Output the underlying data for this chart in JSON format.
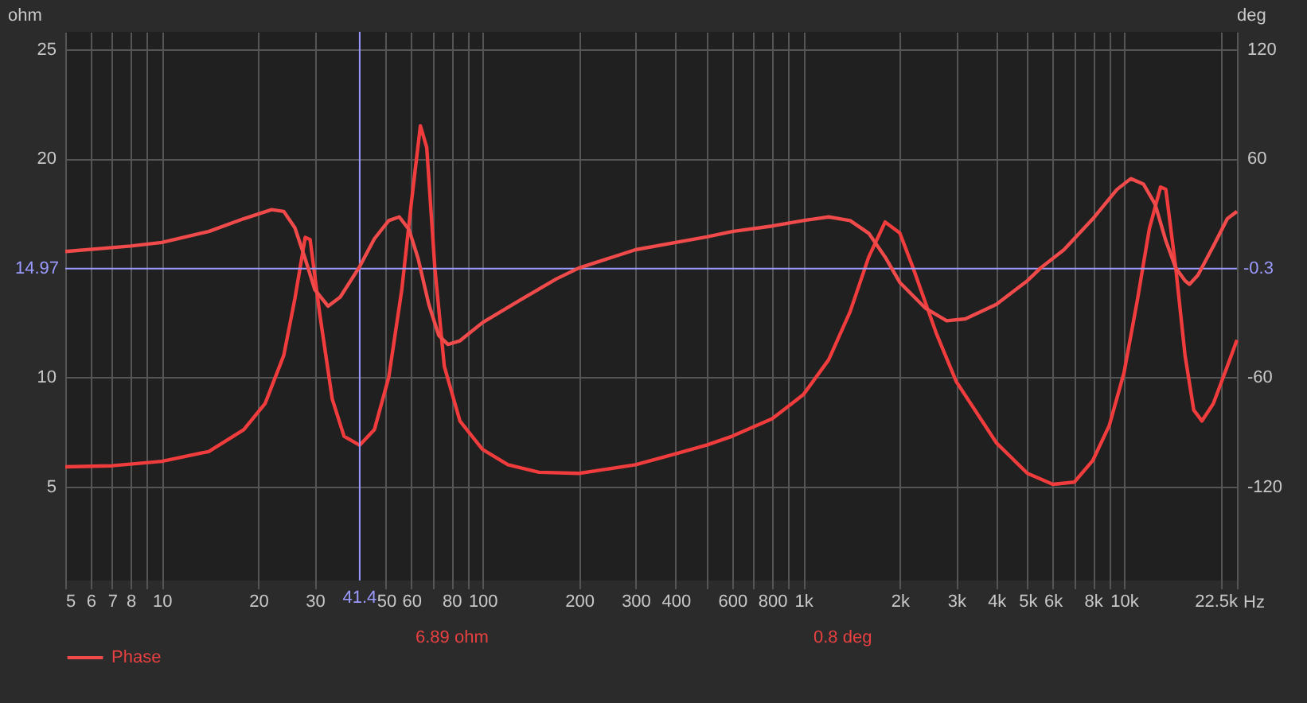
{
  "chart_data": {
    "type": "line",
    "xlabel": "Hz",
    "ylabel": "ohm",
    "y2label": "deg",
    "log": "x",
    "grid": true,
    "legend": "bottom",
    "marker": "none",
    "line_style": "solid",
    "xlim": [
      5,
      22500
    ],
    "ylim": [
      0.7,
      25.8
    ],
    "y2lim": [
      -171.6,
      129.6
    ],
    "xticks": [
      5,
      6,
      7,
      8,
      {
        "value": 9,
        "label": null
      },
      10,
      20,
      30,
      50,
      60,
      {
        "value": 70,
        "label": null
      },
      80,
      {
        "value": 90,
        "label": null
      },
      100,
      200,
      300,
      400,
      {
        "value": 500,
        "label": null
      },
      600,
      {
        "value": 700,
        "label": null
      },
      800,
      {
        "value": 900,
        "label": null
      },
      {
        "value": 1000,
        "label": "1k"
      },
      {
        "value": 2000,
        "label": "2k"
      },
      {
        "value": 3000,
        "label": "3k"
      },
      {
        "value": 4000,
        "label": "4k"
      },
      {
        "value": 5000,
        "label": "5k"
      },
      {
        "value": 6000,
        "label": "6k"
      },
      {
        "value": 7000,
        "label": null
      },
      {
        "value": 8000,
        "label": "8k"
      },
      {
        "value": 9000,
        "label": null
      },
      {
        "value": 10000,
        "label": "10k"
      },
      {
        "value": 20000,
        "label": null
      },
      {
        "value": 22500,
        "label": "22.5k"
      }
    ],
    "yticks": [
      5,
      10,
      20,
      25
    ],
    "y2ticks": [
      -120,
      -60,
      60,
      120
    ],
    "series": [
      {
        "color": "#f03c3c",
        "x": [
          5,
          7,
          10,
          14,
          18,
          21,
          24,
          26,
          28,
          29,
          31,
          34,
          37,
          41.4,
          46,
          51,
          56,
          60,
          64,
          67,
          71,
          76,
          85,
          100,
          120,
          150,
          200,
          300,
          400,
          500,
          600,
          800,
          1000,
          1200,
          1400,
          1600,
          1800,
          2000,
          2200,
          2600,
          3000,
          4000,
          5000,
          6000,
          7000,
          8000,
          9000,
          10000,
          11000,
          12000,
          13000,
          13500,
          14500,
          15500,
          16500,
          17500,
          19000,
          21000,
          22500
        ],
        "values": [
          5.9,
          5.95,
          6.15,
          6.6,
          7.6,
          8.8,
          11,
          13.6,
          16.4,
          16.3,
          13,
          9,
          7.3,
          6.89,
          7.6,
          10,
          14,
          18,
          21.5,
          20.5,
          15,
          10.5,
          8,
          6.7,
          6.0,
          5.65,
          5.6,
          6.0,
          6.5,
          6.9,
          7.3,
          8.1,
          9.2,
          10.8,
          13,
          15.5,
          17.1,
          16.6,
          15,
          12,
          9.8,
          7.0,
          5.6,
          5.1,
          5.2,
          6.2,
          7.8,
          10.2,
          13.5,
          16.8,
          18.7,
          18.6,
          15,
          11,
          8.5,
          8.0,
          8.8,
          10.5,
          11.7
        ]
      },
      {
        "name": "Phase",
        "axis": "y2",
        "color": "#f04a4a",
        "x": [
          5,
          8,
          10,
          14,
          18,
          22,
          24,
          26,
          28,
          30,
          33,
          36,
          41.4,
          46,
          51,
          55,
          59,
          63,
          68,
          73,
          78,
          85,
          100,
          130,
          170,
          200,
          300,
          400,
          500,
          600,
          800,
          1000,
          1200,
          1400,
          1600,
          1800,
          2000,
          2400,
          2800,
          3200,
          4000,
          5000,
          5500,
          6500,
          8000,
          9500,
          10500,
          11500,
          12500,
          13500,
          14500,
          15500,
          16000,
          17000,
          19000,
          21000,
          22500
        ],
        "values": [
          9,
          12,
          14,
          20,
          27,
          32,
          31,
          22,
          5,
          -12,
          -21,
          -16,
          0.8,
          16,
          26,
          28,
          21,
          5,
          -20,
          -37,
          -42,
          -40,
          -30,
          -18,
          -6,
          0,
          10,
          14,
          17,
          20,
          23,
          26,
          28,
          26,
          19,
          6,
          -8,
          -22,
          -29,
          -28,
          -20,
          -7,
          0,
          10,
          27,
          43,
          49,
          46,
          35,
          15,
          0,
          -7,
          -9,
          -4,
          12,
          27,
          31
        ]
      }
    ],
    "ref_lines": [
      {
        "axis": "x",
        "value": 41.4,
        "label": "41.4",
        "color": "#9a9aff"
      },
      {
        "axis": "y",
        "value": 14.97,
        "label": "14.97",
        "color": "#9a9aff"
      }
    ],
    "annotations": [
      "6.89 ohm",
      "0.8 deg",
      "-0.3"
    ]
  }
}
